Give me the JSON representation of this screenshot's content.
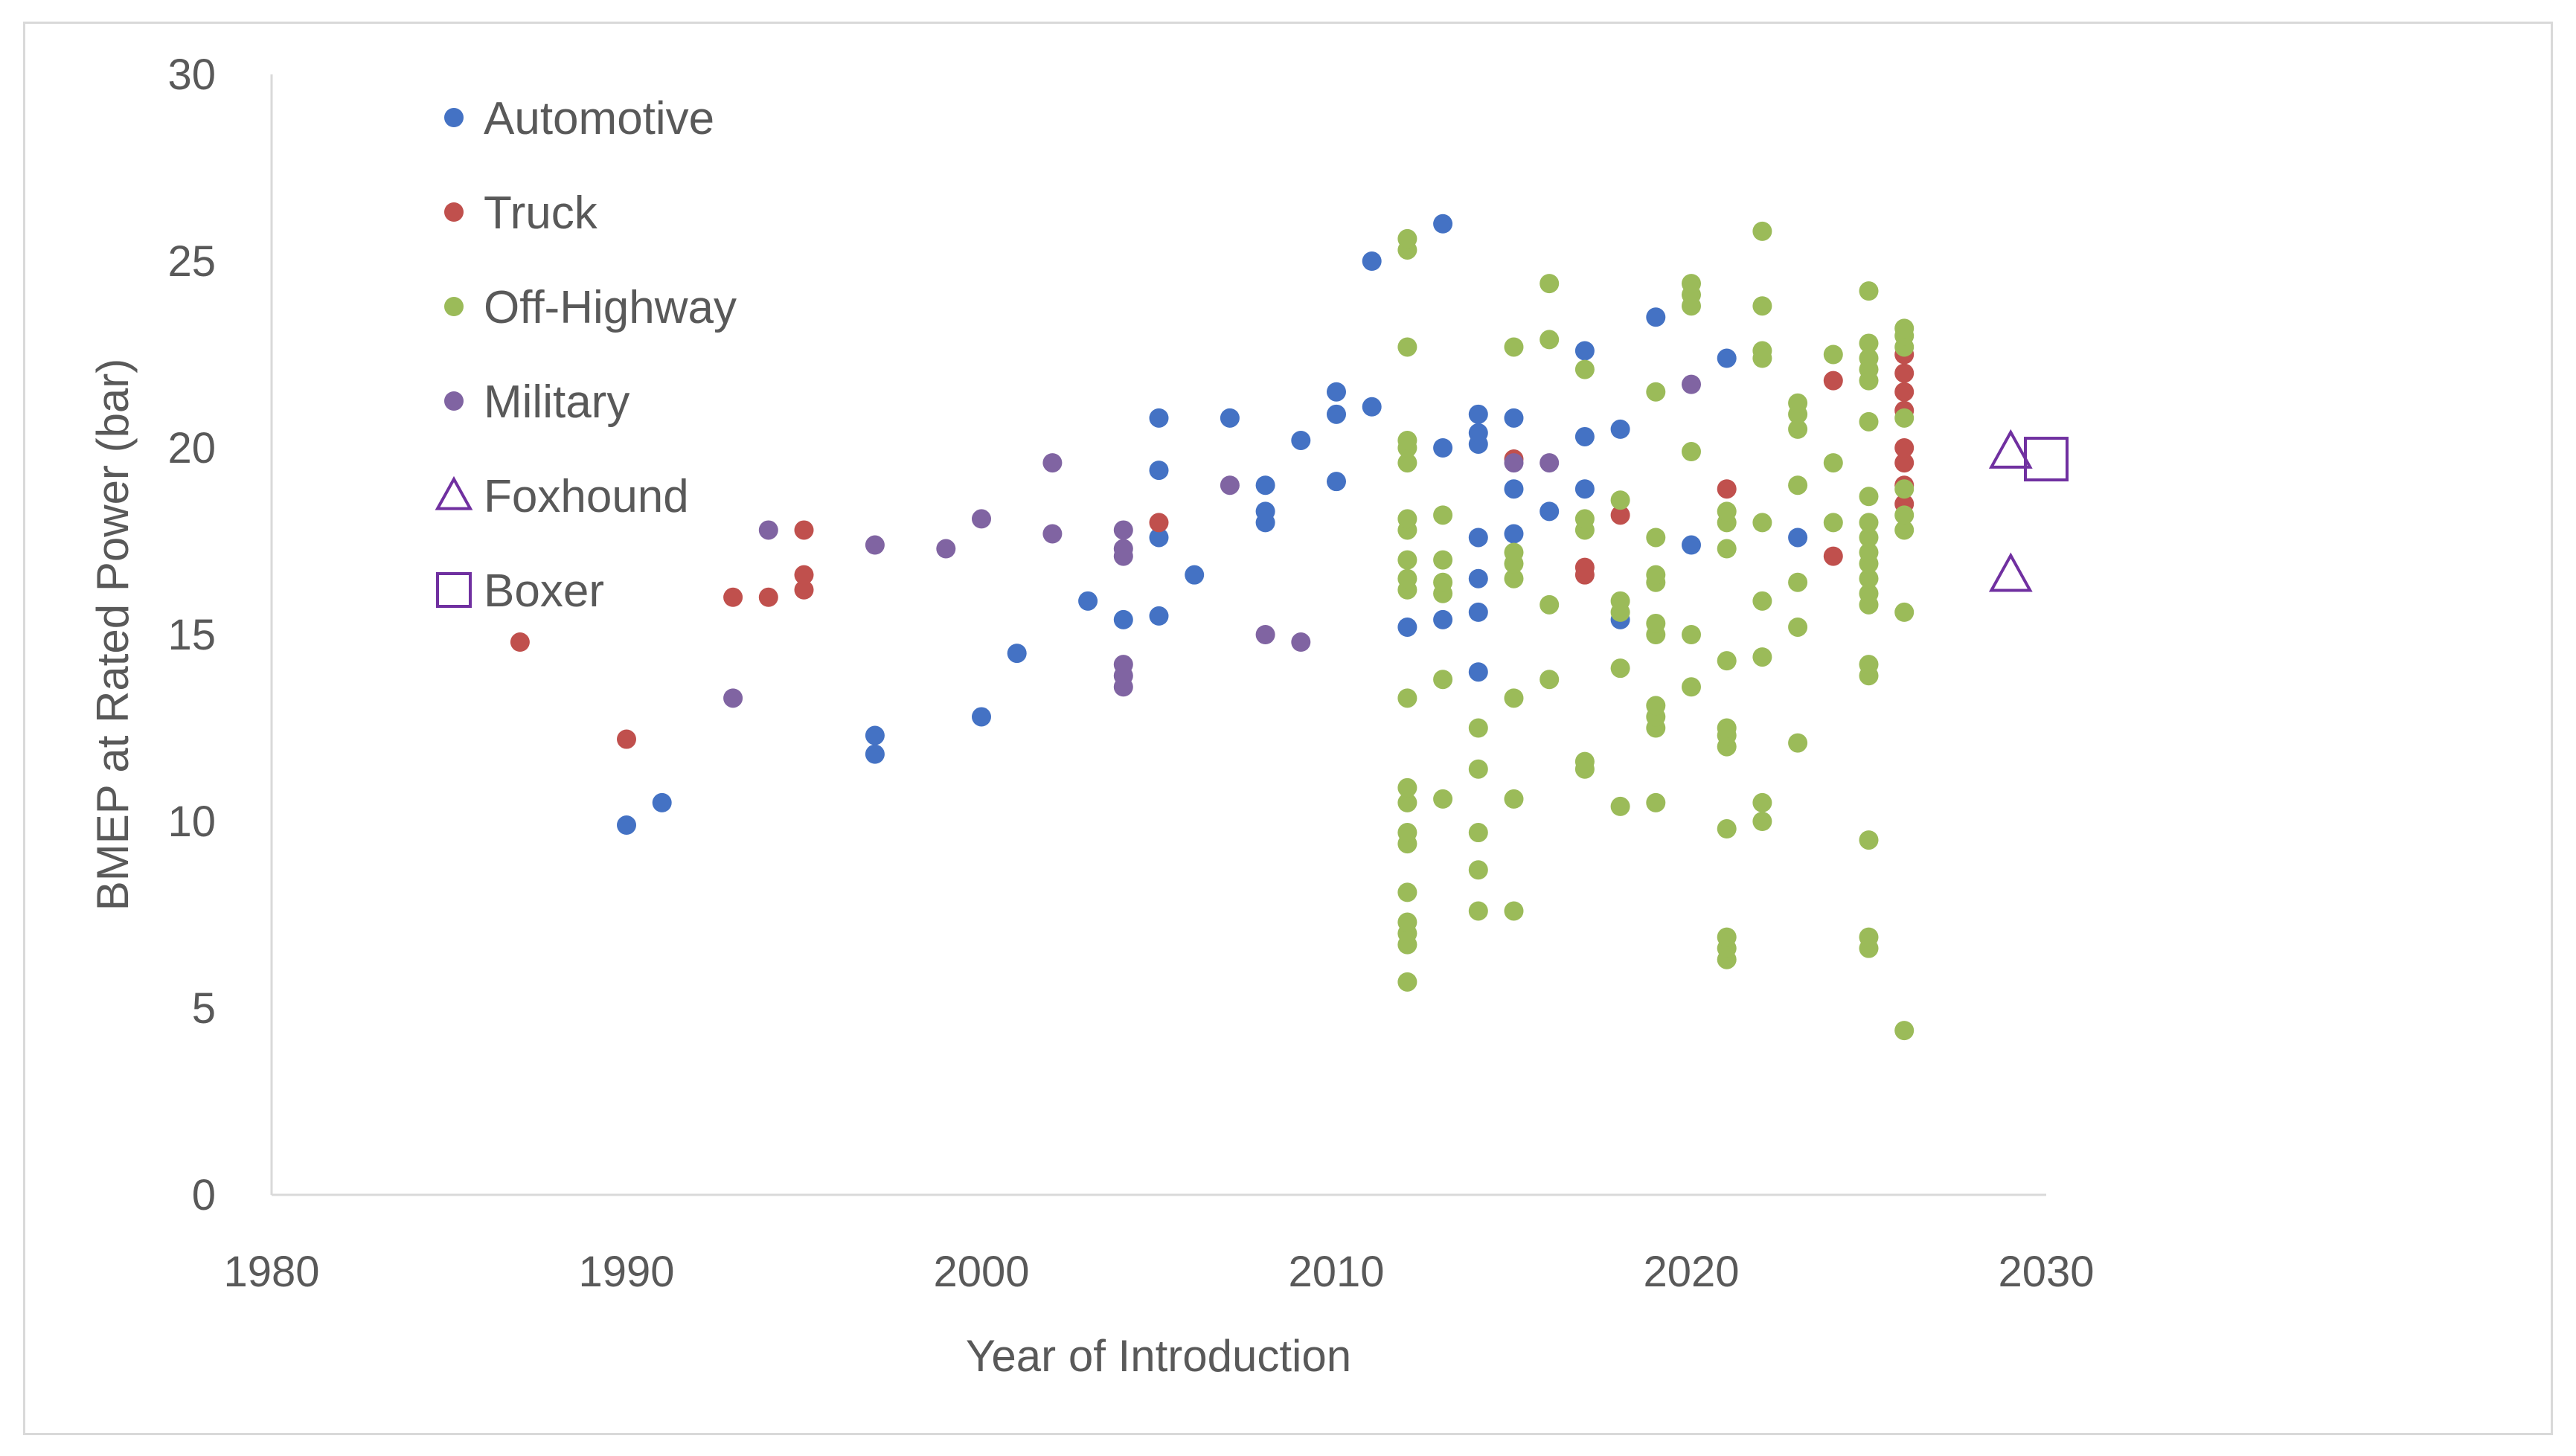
{
  "chart_data": {
    "type": "scatter",
    "title": "",
    "xlabel": "Year of Introduction",
    "ylabel": "BMEP at Rated Power (bar)",
    "xlim": [
      1980,
      2030
    ],
    "ylim": [
      0,
      30
    ],
    "xticks": [
      1980,
      1990,
      2000,
      2010,
      2020,
      2030
    ],
    "yticks": [
      0,
      5,
      10,
      15,
      20,
      25,
      30
    ],
    "grid": false,
    "legend_position": "top-left",
    "series": [
      {
        "name": "Automotive",
        "marker": "circle",
        "color": "#4472c4",
        "points": [
          [
            1990,
            9.9
          ],
          [
            1991,
            10.5
          ],
          [
            1997,
            11.8
          ],
          [
            1997,
            12.3
          ],
          [
            2000,
            12.8
          ],
          [
            2001,
            14.5
          ],
          [
            2003,
            15.9
          ],
          [
            2004,
            15.4
          ],
          [
            2005,
            15.5
          ],
          [
            2005,
            17.6
          ],
          [
            2005,
            19.4
          ],
          [
            2005,
            20.8
          ],
          [
            2006,
            16.6
          ],
          [
            2007,
            20.8
          ],
          [
            2008,
            18.0
          ],
          [
            2008,
            18.3
          ],
          [
            2008,
            19.0
          ],
          [
            2009,
            20.2
          ],
          [
            2010,
            19.1
          ],
          [
            2010,
            20.9
          ],
          [
            2010,
            21.5
          ],
          [
            2011,
            21.1
          ],
          [
            2011,
            25.0
          ],
          [
            2012,
            15.2
          ],
          [
            2013,
            15.4
          ],
          [
            2013,
            20.0
          ],
          [
            2013,
            26.0
          ],
          [
            2014,
            14.0
          ],
          [
            2014,
            15.6
          ],
          [
            2014,
            16.5
          ],
          [
            2014,
            17.6
          ],
          [
            2014,
            20.1
          ],
          [
            2014,
            20.4
          ],
          [
            2014,
            20.9
          ],
          [
            2015,
            17.7
          ],
          [
            2015,
            18.9
          ],
          [
            2015,
            20.8
          ],
          [
            2016,
            18.3
          ],
          [
            2017,
            18.9
          ],
          [
            2017,
            20.3
          ],
          [
            2017,
            22.6
          ],
          [
            2018,
            15.4
          ],
          [
            2018,
            20.5
          ],
          [
            2019,
            23.5
          ],
          [
            2020,
            17.4
          ],
          [
            2021,
            22.4
          ],
          [
            2023,
            17.6
          ]
        ]
      },
      {
        "name": "Truck",
        "marker": "circle",
        "color": "#c0504d",
        "points": [
          [
            1987,
            14.8
          ],
          [
            1990,
            12.2
          ],
          [
            1993,
            16.0
          ],
          [
            1994,
            16.0
          ],
          [
            1995,
            16.2
          ],
          [
            1995,
            16.6
          ],
          [
            1995,
            17.8
          ],
          [
            2005,
            18.0
          ],
          [
            2015,
            19.7
          ],
          [
            2017,
            16.6
          ],
          [
            2017,
            16.8
          ],
          [
            2018,
            18.2
          ],
          [
            2021,
            18.9
          ],
          [
            2024,
            17.1
          ],
          [
            2024,
            21.8
          ],
          [
            2026,
            18.5
          ],
          [
            2026,
            19.0
          ],
          [
            2026,
            19.6
          ],
          [
            2026,
            20.0
          ],
          [
            2026,
            21.0
          ],
          [
            2026,
            21.5
          ],
          [
            2026,
            22.0
          ],
          [
            2026,
            22.5
          ]
        ]
      },
      {
        "name": "Off-Highway",
        "marker": "circle",
        "color": "#9bbb59",
        "points": [
          [
            2012,
            5.7
          ],
          [
            2012,
            6.7
          ],
          [
            2012,
            7.0
          ],
          [
            2012,
            7.3
          ],
          [
            2012,
            8.1
          ],
          [
            2012,
            9.4
          ],
          [
            2012,
            9.7
          ],
          [
            2012,
            10.5
          ],
          [
            2012,
            10.9
          ],
          [
            2012,
            13.3
          ],
          [
            2012,
            16.2
          ],
          [
            2012,
            16.5
          ],
          [
            2012,
            17.0
          ],
          [
            2012,
            17.8
          ],
          [
            2012,
            18.1
          ],
          [
            2012,
            19.6
          ],
          [
            2012,
            20.0
          ],
          [
            2012,
            20.2
          ],
          [
            2012,
            22.7
          ],
          [
            2012,
            25.3
          ],
          [
            2012,
            25.6
          ],
          [
            2013,
            10.6
          ],
          [
            2013,
            13.8
          ],
          [
            2013,
            16.1
          ],
          [
            2013,
            16.4
          ],
          [
            2013,
            17.0
          ],
          [
            2013,
            18.2
          ],
          [
            2014,
            7.6
          ],
          [
            2014,
            8.7
          ],
          [
            2014,
            9.7
          ],
          [
            2014,
            11.4
          ],
          [
            2014,
            12.5
          ],
          [
            2015,
            7.6
          ],
          [
            2015,
            10.6
          ],
          [
            2015,
            13.3
          ],
          [
            2015,
            16.5
          ],
          [
            2015,
            16.9
          ],
          [
            2015,
            17.2
          ],
          [
            2015,
            22.7
          ],
          [
            2016,
            13.8
          ],
          [
            2016,
            15.8
          ],
          [
            2016,
            22.9
          ],
          [
            2016,
            24.4
          ],
          [
            2017,
            11.4
          ],
          [
            2017,
            11.6
          ],
          [
            2017,
            17.8
          ],
          [
            2017,
            18.1
          ],
          [
            2017,
            22.1
          ],
          [
            2018,
            10.4
          ],
          [
            2018,
            14.1
          ],
          [
            2018,
            15.6
          ],
          [
            2018,
            15.9
          ],
          [
            2018,
            18.6
          ],
          [
            2019,
            10.5
          ],
          [
            2019,
            12.5
          ],
          [
            2019,
            12.8
          ],
          [
            2019,
            13.1
          ],
          [
            2019,
            15.0
          ],
          [
            2019,
            15.3
          ],
          [
            2019,
            16.4
          ],
          [
            2019,
            16.6
          ],
          [
            2019,
            17.6
          ],
          [
            2019,
            21.5
          ],
          [
            2020,
            13.6
          ],
          [
            2020,
            15.0
          ],
          [
            2020,
            19.9
          ],
          [
            2020,
            23.8
          ],
          [
            2020,
            24.1
          ],
          [
            2020,
            24.4
          ],
          [
            2021,
            6.3
          ],
          [
            2021,
            6.6
          ],
          [
            2021,
            6.9
          ],
          [
            2021,
            9.8
          ],
          [
            2021,
            12.0
          ],
          [
            2021,
            12.3
          ],
          [
            2021,
            12.5
          ],
          [
            2021,
            14.3
          ],
          [
            2021,
            17.3
          ],
          [
            2021,
            18.0
          ],
          [
            2021,
            18.3
          ],
          [
            2022,
            10.0
          ],
          [
            2022,
            10.5
          ],
          [
            2022,
            14.4
          ],
          [
            2022,
            15.9
          ],
          [
            2022,
            18.0
          ],
          [
            2022,
            22.4
          ],
          [
            2022,
            22.6
          ],
          [
            2022,
            23.8
          ],
          [
            2022,
            25.8
          ],
          [
            2023,
            12.1
          ],
          [
            2023,
            15.2
          ],
          [
            2023,
            16.4
          ],
          [
            2023,
            19.0
          ],
          [
            2023,
            20.5
          ],
          [
            2023,
            20.9
          ],
          [
            2023,
            21.2
          ],
          [
            2024,
            18.0
          ],
          [
            2024,
            19.6
          ],
          [
            2024,
            22.5
          ],
          [
            2025,
            6.6
          ],
          [
            2025,
            6.9
          ],
          [
            2025,
            9.5
          ],
          [
            2025,
            13.9
          ],
          [
            2025,
            14.2
          ],
          [
            2025,
            15.8
          ],
          [
            2025,
            16.1
          ],
          [
            2025,
            16.5
          ],
          [
            2025,
            16.9
          ],
          [
            2025,
            17.2
          ],
          [
            2025,
            17.6
          ],
          [
            2025,
            18.0
          ],
          [
            2025,
            18.7
          ],
          [
            2025,
            20.7
          ],
          [
            2025,
            21.8
          ],
          [
            2025,
            22.1
          ],
          [
            2025,
            22.4
          ],
          [
            2025,
            22.8
          ],
          [
            2025,
            24.2
          ],
          [
            2026,
            4.4
          ],
          [
            2026,
            15.6
          ],
          [
            2026,
            17.8
          ],
          [
            2026,
            18.2
          ],
          [
            2026,
            18.9
          ],
          [
            2026,
            20.8
          ],
          [
            2026,
            22.7
          ],
          [
            2026,
            23.0
          ],
          [
            2026,
            23.2
          ]
        ]
      },
      {
        "name": "Military",
        "marker": "circle",
        "color": "#8064a2",
        "points": [
          [
            1993,
            13.3
          ],
          [
            1994,
            17.8
          ],
          [
            1997,
            17.4
          ],
          [
            1999,
            17.3
          ],
          [
            2000,
            18.1
          ],
          [
            2002,
            17.7
          ],
          [
            2002,
            19.6
          ],
          [
            2004,
            13.6
          ],
          [
            2004,
            13.9
          ],
          [
            2004,
            14.2
          ],
          [
            2004,
            17.1
          ],
          [
            2004,
            17.3
          ],
          [
            2004,
            17.8
          ],
          [
            2007,
            19.0
          ],
          [
            2008,
            15.0
          ],
          [
            2009,
            14.8
          ],
          [
            2015,
            19.6
          ],
          [
            2016,
            19.6
          ],
          [
            2020,
            21.7
          ]
        ]
      },
      {
        "name": "Foxhound",
        "marker": "triangle-open",
        "color": "#7030a0",
        "points": [
          [
            2029,
            19.9
          ],
          [
            2029,
            16.6
          ]
        ]
      },
      {
        "name": "Boxer",
        "marker": "square-open",
        "color": "#7030a0",
        "points": [
          [
            2030,
            19.7
          ]
        ]
      }
    ]
  }
}
